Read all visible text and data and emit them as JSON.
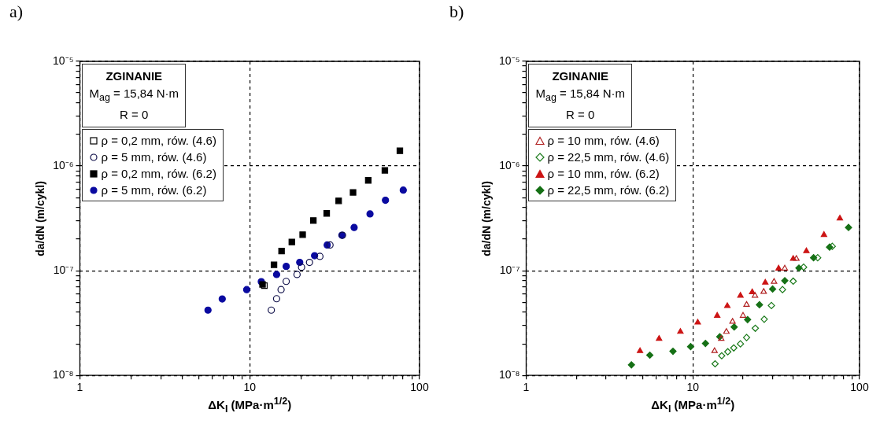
{
  "chart_data": [
    {
      "type": "scatter",
      "title": "a)",
      "xlabel": "ΔK$_{I}$ (MPa·m$^{1/2}$)",
      "ylabel": "da/dN (m/cykl)",
      "log": "xy",
      "grid": true,
      "legend": "top left",
      "annotations": [
        "ZGINANIE",
        "M$_{ag}$ = 15,84 N·m",
        "R = 0"
      ],
      "xlim": [
        1,
        100
      ],
      "ylim": [
        1e-08,
        1e-05
      ],
      "xticks": [
        1,
        {
          "value": 2,
          "label": null
        },
        {
          "value": 3,
          "label": null
        },
        {
          "value": 4,
          "label": null
        },
        {
          "value": 5,
          "label": null
        },
        {
          "value": 6,
          "label": null
        },
        {
          "value": 7,
          "label": null
        },
        {
          "value": 8,
          "label": null
        },
        {
          "value": 9,
          "label": null
        },
        10,
        {
          "value": 20,
          "label": null
        },
        {
          "value": 30,
          "label": null
        },
        {
          "value": 40,
          "label": null
        },
        {
          "value": 50,
          "label": null
        },
        {
          "value": 60,
          "label": null
        },
        {
          "value": 70,
          "label": null
        },
        {
          "value": 80,
          "label": null
        },
        {
          "value": 90,
          "label": null
        },
        100
      ],
      "yticks": [
        {
          "value": 1e-08,
          "label": "10⁻⁸"
        },
        {
          "value": 2e-08,
          "label": null
        },
        {
          "value": 3e-08,
          "label": null
        },
        {
          "value": 4e-08,
          "label": null
        },
        {
          "value": 5e-08,
          "label": null
        },
        {
          "value": 6e-08,
          "label": null
        },
        {
          "value": 7e-08,
          "label": null
        },
        {
          "value": 8e-08,
          "label": null
        },
        {
          "value": 9e-08,
          "label": null
        },
        {
          "value": 1e-07,
          "label": "10⁻⁷"
        },
        {
          "value": 2e-07,
          "label": null
        },
        {
          "value": 3e-07,
          "label": null
        },
        {
          "value": 4e-07,
          "label": null
        },
        {
          "value": 5e-07,
          "label": null
        },
        {
          "value": 6e-07,
          "label": null
        },
        {
          "value": 7e-07,
          "label": null
        },
        {
          "value": 8e-07,
          "label": null
        },
        {
          "value": 9e-07,
          "label": null
        },
        {
          "value": 1e-06,
          "label": "10⁻⁶"
        },
        {
          "value": 2e-06,
          "label": null
        },
        {
          "value": 3e-06,
          "label": null
        },
        {
          "value": 4e-06,
          "label": null
        },
        {
          "value": 5e-06,
          "label": null
        },
        {
          "value": 6e-06,
          "label": null
        },
        {
          "value": 7e-06,
          "label": null
        },
        {
          "value": 8e-06,
          "label": null
        },
        {
          "value": 9e-06,
          "label": null
        },
        {
          "value": 1e-05,
          "label": "10⁻⁵"
        }
      ],
      "series": [
        {
          "name": "ρ = 0,2 mm, rów. (4.6)",
          "color": "#000000",
          "marker": "square-open",
          "x": [
            12.2
          ],
          "values": [
            7.2e-08
          ]
        },
        {
          "name": "ρ = 5 mm, rów. (4.6)",
          "color": "#10104a",
          "marker": "circle-open",
          "x": [
            13.4,
            14.4,
            15.3,
            16.4,
            19.0,
            20.2,
            22.5,
            25.9,
            29.7,
            35.2
          ],
          "values": [
            4.2e-08,
            5.4e-08,
            6.6e-08,
            7.9e-08,
            9.2e-08,
            1.08e-07,
            1.2e-07,
            1.37e-07,
            1.76e-07,
            2.18e-07
          ]
        },
        {
          "name": "ρ = 0,2 mm, rów. (6.2)",
          "color": "#000000",
          "marker": "square",
          "x": [
            11.9,
            13.9,
            15.4,
            17.7,
            20.5,
            23.7,
            28.4,
            33.4,
            40.6,
            49.9,
            62.5,
            76.6
          ],
          "values": [
            7.4e-08,
            1.14e-07,
            1.54e-07,
            1.88e-07,
            2.21e-07,
            3.02e-07,
            3.53e-07,
            4.65e-07,
            5.6e-07,
            7.3e-07,
            9.1e-07,
            1.4e-06
          ]
        },
        {
          "name": "ρ = 5 mm, rów. (6.2)",
          "color": "#0a0aa0",
          "marker": "circle",
          "x": [
            5.68,
            6.89,
            9.6,
            11.7,
            14.4,
            16.4,
            19.7,
            24.1,
            28.6,
            34.9,
            41.2,
            51.1,
            63.0,
            80.2
          ],
          "values": [
            4.2e-08,
            5.37e-08,
            6.6e-08,
            7.85e-08,
            9.2e-08,
            1.1e-07,
            1.2e-07,
            1.39e-07,
            1.76e-07,
            2.18e-07,
            2.59e-07,
            3.49e-07,
            4.71e-07,
            5.89e-07
          ]
        }
      ]
    },
    {
      "type": "scatter",
      "title": "b)",
      "xlabel": "ΔK$_{I}$ (MPa·m$^{1/2}$)",
      "ylabel": "da/dN (m/cykl)",
      "log": "xy",
      "grid": true,
      "legend": "top left",
      "annotations": [
        "ZGINANIE",
        "M$_{ag}$ = 15,84 N·m",
        "R = 0"
      ],
      "xlim": [
        1,
        100
      ],
      "ylim": [
        1e-08,
        1e-05
      ],
      "xticks": [
        1,
        {
          "value": 2,
          "label": null
        },
        {
          "value": 3,
          "label": null
        },
        {
          "value": 4,
          "label": null
        },
        {
          "value": 5,
          "label": null
        },
        {
          "value": 6,
          "label": null
        },
        {
          "value": 7,
          "label": null
        },
        {
          "value": 8,
          "label": null
        },
        {
          "value": 9,
          "label": null
        },
        10,
        {
          "value": 20,
          "label": null
        },
        {
          "value": 30,
          "label": null
        },
        {
          "value": 40,
          "label": null
        },
        {
          "value": 50,
          "label": null
        },
        {
          "value": 60,
          "label": null
        },
        {
          "value": 70,
          "label": null
        },
        {
          "value": 80,
          "label": null
        },
        {
          "value": 90,
          "label": null
        },
        100
      ],
      "yticks": [
        {
          "value": 1e-08,
          "label": "10⁻⁸"
        },
        {
          "value": 2e-08,
          "label": null
        },
        {
          "value": 3e-08,
          "label": null
        },
        {
          "value": 4e-08,
          "label": null
        },
        {
          "value": 5e-08,
          "label": null
        },
        {
          "value": 6e-08,
          "label": null
        },
        {
          "value": 7e-08,
          "label": null
        },
        {
          "value": 8e-08,
          "label": null
        },
        {
          "value": 9e-08,
          "label": null
        },
        {
          "value": 1e-07,
          "label": "10⁻⁷"
        },
        {
          "value": 2e-07,
          "label": null
        },
        {
          "value": 3e-07,
          "label": null
        },
        {
          "value": 4e-07,
          "label": null
        },
        {
          "value": 5e-07,
          "label": null
        },
        {
          "value": 6e-07,
          "label": null
        },
        {
          "value": 7e-07,
          "label": null
        },
        {
          "value": 8e-07,
          "label": null
        },
        {
          "value": 9e-07,
          "label": null
        },
        {
          "value": 1e-06,
          "label": "10⁻⁶"
        },
        {
          "value": 2e-06,
          "label": null
        },
        {
          "value": 3e-06,
          "label": null
        },
        {
          "value": 4e-06,
          "label": null
        },
        {
          "value": 5e-06,
          "label": null
        },
        {
          "value": 6e-06,
          "label": null
        },
        {
          "value": 7e-06,
          "label": null
        },
        {
          "value": 8e-06,
          "label": null
        },
        {
          "value": 9e-06,
          "label": null
        },
        {
          "value": 1e-05,
          "label": "10⁻⁵"
        }
      ],
      "series": [
        {
          "name": "ρ = 10 mm, rów. (4.6)",
          "color": "#b02020",
          "marker": "triangle-open",
          "x": [
            13.5,
            14.8,
            15.9,
            17.3,
            20.0,
            21.0,
            23.6,
            26.6,
            30.7,
            35.6,
            41.8
          ],
          "values": [
            1.71e-08,
            2.24e-08,
            2.61e-08,
            3.26e-08,
            3.72e-08,
            4.73e-08,
            5.78e-08,
            6.3e-08,
            7.85e-08,
            1.05e-07,
            1.3e-07
          ]
        },
        {
          "name": "ρ = 22,5 mm, rów. (4.6)",
          "color": "#1a7a1a",
          "marker": "diamond-open",
          "x": [
            13.6,
            14.9,
            16.2,
            17.6,
            19.3,
            21.0,
            23.7,
            26.8,
            29.6,
            34.5,
            40.0,
            46.2,
            56.1,
            68.6
          ],
          "values": [
            1.29e-08,
            1.54e-08,
            1.68e-08,
            1.83e-08,
            2e-08,
            2.3e-08,
            2.82e-08,
            3.44e-08,
            4.65e-08,
            6.6e-08,
            7.94e-08,
            1.08e-07,
            1.33e-07,
            1.71e-07
          ]
        },
        {
          "name": "ρ = 10 mm, rów. (6.2)",
          "color": "#cc1414",
          "marker": "triangle",
          "x": [
            4.82,
            6.27,
            8.42,
            10.7,
            14.0,
            16.1,
            19.3,
            22.7,
            27.2,
            32.7,
            40.0,
            48.0,
            61.2,
            76.2
          ],
          "values": [
            1.71e-08,
            2.24e-08,
            2.61e-08,
            3.2e-08,
            3.72e-08,
            4.6e-08,
            5.78e-08,
            6.24e-08,
            7.7e-08,
            1.05e-07,
            1.3e-07,
            1.54e-07,
            2.2e-07,
            3.16e-07
          ]
        },
        {
          "name": "ρ = 22,5 mm, rów. (6.2)",
          "color": "#157015",
          "marker": "diamond",
          "x": [
            4.28,
            5.52,
            7.6,
            9.7,
            11.9,
            14.5,
            17.7,
            21.3,
            25.1,
            30.1,
            35.6,
            43.3,
            53.0,
            66.1,
            85.9
          ],
          "values": [
            1.26e-08,
            1.56e-08,
            1.7e-08,
            1.88e-08,
            2.02e-08,
            2.34e-08,
            2.9e-08,
            3.41e-08,
            4.73e-08,
            6.68e-08,
            8.03e-08,
            1.06e-07,
            1.33e-07,
            1.68e-07,
            2.59e-07
          ]
        }
      ]
    }
  ]
}
